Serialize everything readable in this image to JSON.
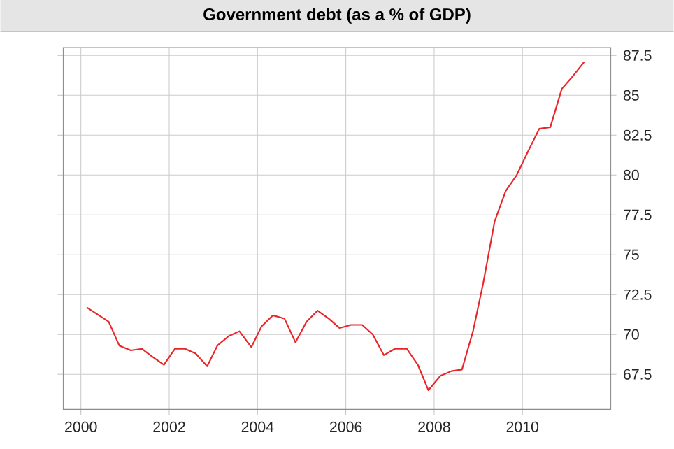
{
  "chart_data": {
    "type": "line",
    "title": "Government debt (as a % of GDP)",
    "x": [
      2000.13,
      2000.63,
      2000.87,
      2001.13,
      2001.38,
      2001.62,
      2001.88,
      2002.13,
      2002.36,
      2002.6,
      2002.86,
      2003.09,
      2003.35,
      2003.59,
      2003.86,
      2004.09,
      2004.35,
      2004.61,
      2004.86,
      2005.11,
      2005.36,
      2005.61,
      2005.86,
      2006.12,
      2006.37,
      2006.61,
      2006.86,
      2007.11,
      2007.38,
      2007.63,
      2007.87,
      2008.14,
      2008.39,
      2008.63,
      2008.88,
      2009.11,
      2009.37,
      2009.62,
      2009.87,
      2010.13,
      2010.38,
      2010.63,
      2010.89,
      2011.14,
      2011.4
    ],
    "series": [
      {
        "color": "#e8262a",
        "values": [
          71.7,
          70.8,
          69.3,
          69.0,
          69.1,
          68.6,
          68.1,
          69.1,
          69.1,
          68.8,
          68.0,
          69.3,
          69.9,
          70.2,
          69.2,
          70.5,
          71.2,
          71.0,
          69.5,
          70.8,
          71.5,
          71.0,
          70.4,
          70.6,
          70.6,
          70.0,
          68.7,
          69.1,
          69.1,
          68.1,
          66.5,
          67.4,
          67.7,
          67.8,
          70.2,
          73.2,
          77.1,
          79.0,
          80.0,
          81.5,
          82.9,
          83.0,
          85.4,
          86.2,
          87.1
        ]
      }
    ],
    "xlim": [
      1999.6,
      2012.0
    ],
    "ylim": [
      65.3,
      88.0
    ],
    "xticks": [
      2000,
      2002,
      2004,
      2006,
      2008,
      2010
    ],
    "yticks": [
      67.5,
      70,
      72.5,
      75,
      77.5,
      80,
      82.5,
      85,
      87.5
    ],
    "grid": true,
    "marker": "none",
    "line_style": "solid"
  }
}
